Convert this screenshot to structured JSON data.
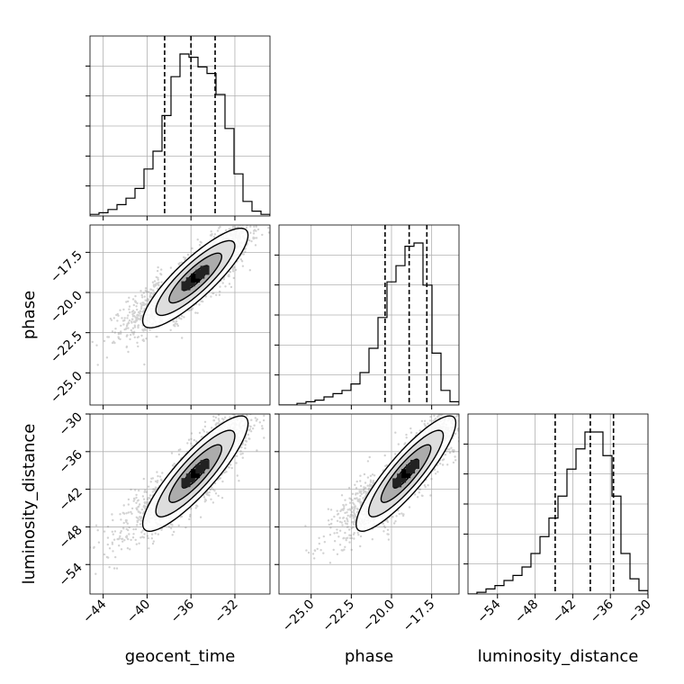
{
  "chart_data": {
    "type": "corner",
    "parameters": [
      "geocent_time",
      "phase",
      "luminosity_distance"
    ],
    "axis_labels": {
      "geocent_time": "geocent_time",
      "phase": "phase",
      "luminosity_distance": "luminosity_distance"
    },
    "ranges": {
      "geocent_time": [
        -45.2,
        -28.8
      ],
      "phase": [
        -27.0,
        -15.8
      ],
      "luminosity_distance": [
        -58.7,
        -30.0
      ]
    },
    "ticks": {
      "geocent_time": [
        -44,
        -40,
        -36,
        -32
      ],
      "phase": [
        -25.0,
        -22.5,
        -20.0,
        -17.5
      ],
      "luminosity_distance": [
        -54,
        -48,
        -42,
        -36,
        -30
      ]
    },
    "tick_labels": {
      "geocent_time": [
        "−44",
        "−40",
        "−36",
        "−32"
      ],
      "phase": [
        "−25.0",
        "−22.5",
        "−20.0",
        "−17.5"
      ],
      "luminosity_distance": [
        "−54",
        "−48",
        "−42",
        "−36",
        "−30"
      ]
    },
    "quantiles": {
      "geocent_time": [
        -38.4,
        -36.0,
        -33.8
      ],
      "phase": [
        -20.4,
        -18.9,
        -17.8
      ],
      "luminosity_distance": [
        -44.8,
        -39.2,
        -35.5
      ]
    },
    "histograms": {
      "geocent_time": {
        "edges": [
          -45.2,
          -44.38,
          -43.56,
          -42.74,
          -41.92,
          -41.1,
          -40.28,
          -39.46,
          -38.64,
          -37.82,
          -37.0,
          -36.18,
          -35.36,
          -34.54,
          -33.72,
          -32.9,
          -32.08,
          -31.26,
          -30.44,
          -29.62,
          -28.8
        ],
        "counts": [
          0.01,
          0.02,
          0.04,
          0.07,
          0.11,
          0.17,
          0.29,
          0.4,
          0.62,
          0.86,
          1.0,
          0.98,
          0.92,
          0.88,
          0.75,
          0.54,
          0.26,
          0.09,
          0.03,
          0.01
        ]
      },
      "phase": {
        "edges": [
          -27.0,
          -26.44,
          -25.88,
          -25.32,
          -24.76,
          -24.2,
          -23.64,
          -23.08,
          -22.52,
          -21.96,
          -21.4,
          -20.84,
          -20.28,
          -19.72,
          -19.16,
          -18.6,
          -18.04,
          -17.48,
          -16.92,
          -16.36,
          -15.8
        ],
        "counts": [
          0.0,
          0.0,
          0.01,
          0.02,
          0.03,
          0.05,
          0.07,
          0.09,
          0.13,
          0.2,
          0.35,
          0.54,
          0.76,
          0.86,
          0.98,
          1.0,
          0.74,
          0.32,
          0.09,
          0.02
        ]
      },
      "luminosity_distance": {
        "edges": [
          -58.7,
          -57.27,
          -55.83,
          -54.4,
          -52.96,
          -51.53,
          -50.09,
          -48.66,
          -47.22,
          -45.79,
          -44.35,
          -42.92,
          -41.48,
          -40.05,
          -38.61,
          -37.18,
          -35.74,
          -34.31,
          -32.87,
          -31.44,
          -30.0
        ],
        "counts": [
          0.0,
          0.01,
          0.03,
          0.05,
          0.08,
          0.11,
          0.16,
          0.24,
          0.34,
          0.45,
          0.58,
          0.74,
          0.86,
          0.96,
          0.96,
          0.82,
          0.58,
          0.24,
          0.09,
          0.02
        ]
      }
    },
    "pairs": [
      {
        "x": "geocent_time",
        "y": "phase",
        "mean": [
          -35.6,
          -19.1
        ],
        "std": [
          2.4,
          1.55
        ],
        "rho": 0.86
      },
      {
        "x": "geocent_time",
        "y": "luminosity_distance",
        "mean": [
          -35.6,
          -39.5
        ],
        "std": [
          2.4,
          4.6
        ],
        "rho": 0.87
      },
      {
        "x": "phase",
        "y": "luminosity_distance",
        "mean": [
          -19.1,
          -39.5
        ],
        "std": [
          1.55,
          4.6
        ],
        "rho": 0.88
      }
    ],
    "contour_levels_sigma": [
      0.5,
      1.0,
      1.5,
      2.0
    ],
    "grid": true,
    "colors": {
      "line": "#000000",
      "grid": "#b0b0b0",
      "points": "#808080"
    }
  }
}
